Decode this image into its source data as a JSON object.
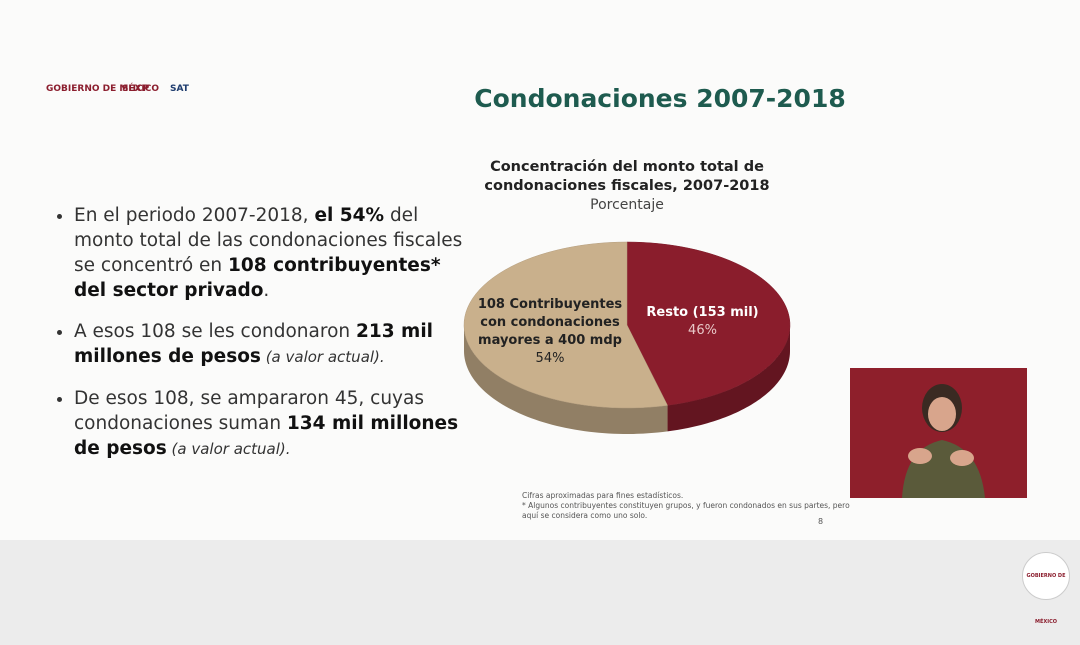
{
  "header": {
    "logos": [
      "GOBIERNO DE MÉXICO",
      "SHCP",
      "SAT"
    ],
    "title": "Condonaciones 2007-2018"
  },
  "bullets": [
    [
      {
        "text": "En el periodo 2007-2018, ",
        "style": "normal"
      },
      {
        "text": "el 54%",
        "style": "bold"
      },
      {
        "text": " del monto total de las condonaciones fiscales se concentró en ",
        "style": "normal"
      },
      {
        "text": "108 contribuyentes* del sector privado",
        "style": "bold"
      },
      {
        "text": ".",
        "style": "normal"
      }
    ],
    [
      {
        "text": "A esos 108 se les condonaron ",
        "style": "normal"
      },
      {
        "text": "213 mil millones de pesos",
        "style": "bold"
      },
      {
        "text": " (a valor actual).",
        "style": "italic"
      }
    ],
    [
      {
        "text": "De esos 108, se ampararon 45, cuyas condonaciones suman ",
        "style": "normal"
      },
      {
        "text": "134 mil millones de pesos",
        "style": "bold"
      },
      {
        "text": " (a valor actual).",
        "style": "italic"
      }
    ]
  ],
  "chart_data": {
    "type": "pie",
    "title": [
      "Concentración del monto total de",
      "condonaciones fiscales, 2007-2018"
    ],
    "subtitle": "Porcentaje",
    "categories": [
      "108 Contribuyentes con condonaciones mayores a 400 mdp",
      "Resto (153 mil)"
    ],
    "values": [
      54,
      46
    ],
    "value_labels": [
      "54%",
      "46%"
    ],
    "colors": [
      "#c9b08c",
      "#8a1d2c"
    ]
  },
  "footnotes": [
    "Cifras aproximadas para fines estadísticos.",
    "* Algunos contribuyentes constituyen grupos, y fueron condonados en sus partes, pero aquí se considera como uno solo."
  ],
  "page_number": "8",
  "corner_logo": "GOBIERNO DE MÉXICO"
}
